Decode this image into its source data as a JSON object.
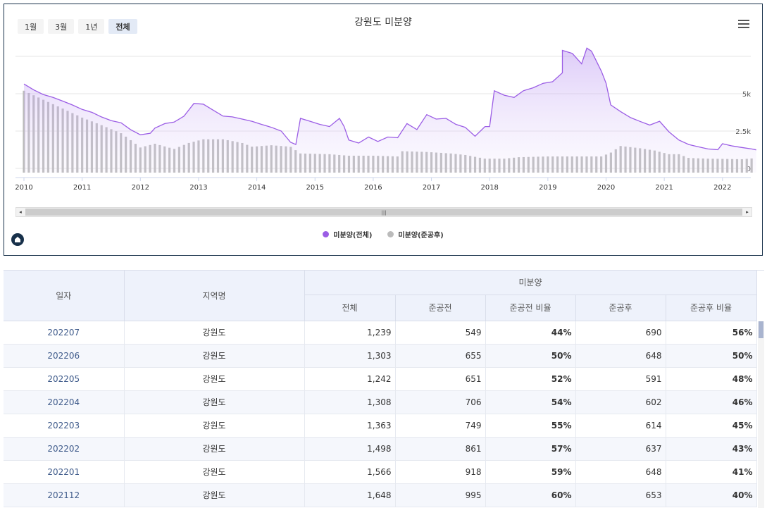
{
  "range_buttons": [
    {
      "label": "1월"
    },
    {
      "label": "3월"
    },
    {
      "label": "1년"
    },
    {
      "label": "전체",
      "active": true
    }
  ],
  "chart_data": {
    "type": "area+bar",
    "title": "강원도 미분양",
    "x_ticks": [
      "2010",
      "2011",
      "2012",
      "2013",
      "2014",
      "2015",
      "2016",
      "2017",
      "2018",
      "2019",
      "2020",
      "2021",
      "2022"
    ],
    "y_ticks": [
      "0",
      "2.5k",
      "5k"
    ],
    "ylim": [
      0,
      7500
    ],
    "grid": true,
    "legend_position": "bottom",
    "series": [
      {
        "name": "미분양(전체)",
        "type": "area",
        "color": "#9b5de5",
        "points": [
          [
            2010.0,
            5650
          ],
          [
            2010.17,
            5250
          ],
          [
            2010.33,
            4950
          ],
          [
            2010.5,
            4750
          ],
          [
            2010.67,
            4500
          ],
          [
            2010.83,
            4250
          ],
          [
            2011.0,
            3950
          ],
          [
            2011.17,
            3750
          ],
          [
            2011.33,
            3450
          ],
          [
            2011.5,
            3200
          ],
          [
            2011.67,
            3050
          ],
          [
            2011.83,
            2600
          ],
          [
            2012.0,
            2250
          ],
          [
            2012.17,
            2350
          ],
          [
            2012.25,
            2700
          ],
          [
            2012.42,
            3000
          ],
          [
            2012.58,
            3100
          ],
          [
            2012.75,
            3500
          ],
          [
            2012.92,
            4350
          ],
          [
            2013.08,
            4300
          ],
          [
            2013.25,
            3900
          ],
          [
            2013.42,
            3500
          ],
          [
            2013.58,
            3450
          ],
          [
            2013.75,
            3300
          ],
          [
            2013.92,
            3150
          ],
          [
            2014.08,
            2950
          ],
          [
            2014.25,
            2750
          ],
          [
            2014.42,
            2500
          ],
          [
            2014.58,
            1750
          ],
          [
            2014.67,
            1600
          ],
          [
            2014.75,
            3350
          ],
          [
            2014.92,
            3150
          ],
          [
            2015.08,
            2950
          ],
          [
            2015.25,
            2800
          ],
          [
            2015.42,
            3350
          ],
          [
            2015.5,
            2800
          ],
          [
            2015.58,
            1900
          ],
          [
            2015.75,
            1700
          ],
          [
            2015.92,
            2100
          ],
          [
            2016.08,
            1800
          ],
          [
            2016.25,
            2100
          ],
          [
            2016.42,
            2050
          ],
          [
            2016.58,
            3000
          ],
          [
            2016.75,
            2600
          ],
          [
            2016.92,
            3600
          ],
          [
            2017.08,
            3300
          ],
          [
            2017.25,
            3350
          ],
          [
            2017.42,
            2950
          ],
          [
            2017.58,
            2750
          ],
          [
            2017.75,
            2150
          ],
          [
            2017.92,
            2800
          ],
          [
            2018.0,
            2800
          ],
          [
            2018.08,
            5200
          ],
          [
            2018.25,
            4900
          ],
          [
            2018.42,
            4750
          ],
          [
            2018.58,
            5200
          ],
          [
            2018.75,
            5400
          ],
          [
            2018.92,
            5700
          ],
          [
            2019.08,
            5800
          ],
          [
            2019.25,
            6400
          ],
          [
            2019.25,
            7900
          ],
          [
            2019.42,
            7700
          ],
          [
            2019.58,
            7000
          ],
          [
            2019.67,
            8050
          ],
          [
            2019.75,
            7850
          ],
          [
            2019.92,
            6500
          ],
          [
            2020.0,
            5700
          ],
          [
            2020.08,
            4250
          ],
          [
            2020.25,
            3800
          ],
          [
            2020.42,
            3400
          ],
          [
            2020.58,
            3150
          ],
          [
            2020.75,
            2900
          ],
          [
            2020.92,
            3150
          ],
          [
            2021.08,
            2450
          ],
          [
            2021.25,
            1900
          ],
          [
            2021.42,
            1600
          ],
          [
            2021.58,
            1450
          ],
          [
            2021.75,
            1300
          ],
          [
            2021.92,
            1250
          ],
          [
            2022.0,
            1650
          ],
          [
            2022.17,
            1500
          ],
          [
            2022.33,
            1400
          ],
          [
            2022.5,
            1303
          ],
          [
            2022.58,
            1239
          ]
        ]
      },
      {
        "name": "미분양(준공후)",
        "type": "bar",
        "color": "#bbbbbb",
        "points": [
          [
            2010.0,
            5200
          ],
          [
            2010.33,
            4600
          ],
          [
            2010.67,
            4000
          ],
          [
            2011.0,
            3400
          ],
          [
            2011.33,
            2900
          ],
          [
            2011.67,
            2350
          ],
          [
            2011.83,
            1900
          ],
          [
            2012.0,
            1400
          ],
          [
            2012.25,
            1650
          ],
          [
            2012.58,
            1300
          ],
          [
            2012.83,
            1700
          ],
          [
            2013.08,
            1950
          ],
          [
            2013.42,
            1950
          ],
          [
            2013.75,
            1700
          ],
          [
            2013.92,
            1450
          ],
          [
            2014.25,
            1550
          ],
          [
            2014.58,
            1450
          ],
          [
            2014.75,
            1000
          ],
          [
            2015.25,
            950
          ],
          [
            2015.58,
            850
          ],
          [
            2016.0,
            850
          ],
          [
            2016.42,
            800
          ],
          [
            2016.5,
            1150
          ],
          [
            2016.92,
            1100
          ],
          [
            2017.33,
            1000
          ],
          [
            2017.58,
            900
          ],
          [
            2017.92,
            650
          ],
          [
            2018.25,
            650
          ],
          [
            2018.5,
            750
          ],
          [
            2019.0,
            800
          ],
          [
            2019.5,
            800
          ],
          [
            2019.92,
            800
          ],
          [
            2020.08,
            1050
          ],
          [
            2020.25,
            1500
          ],
          [
            2020.58,
            1350
          ],
          [
            2020.83,
            1200
          ],
          [
            2021.08,
            950
          ],
          [
            2021.25,
            950
          ],
          [
            2021.42,
            700
          ],
          [
            2021.75,
            650
          ],
          [
            2022.0,
            637
          ],
          [
            2022.33,
            614
          ],
          [
            2022.58,
            690
          ]
        ]
      }
    ]
  },
  "table": {
    "header_group": "미분양",
    "columns": {
      "date": "일자",
      "region": "지역명",
      "total": "전체",
      "pre": "준공전",
      "pre_ratio": "준공전 비율",
      "post": "준공후",
      "post_ratio": "준공후 비율"
    },
    "rows": [
      {
        "date": "202207",
        "region": "강원도",
        "total": "1,239",
        "pre": "549",
        "pre_ratio": "44%",
        "post": "690",
        "post_ratio": "56%"
      },
      {
        "date": "202206",
        "region": "강원도",
        "total": "1,303",
        "pre": "655",
        "pre_ratio": "50%",
        "post": "648",
        "post_ratio": "50%"
      },
      {
        "date": "202205",
        "region": "강원도",
        "total": "1,242",
        "pre": "651",
        "pre_ratio": "52%",
        "post": "591",
        "post_ratio": "48%"
      },
      {
        "date": "202204",
        "region": "강원도",
        "total": "1,308",
        "pre": "706",
        "pre_ratio": "54%",
        "post": "602",
        "post_ratio": "46%"
      },
      {
        "date": "202203",
        "region": "강원도",
        "total": "1,363",
        "pre": "749",
        "pre_ratio": "55%",
        "post": "614",
        "post_ratio": "45%"
      },
      {
        "date": "202202",
        "region": "강원도",
        "total": "1,498",
        "pre": "861",
        "pre_ratio": "57%",
        "post": "637",
        "post_ratio": "43%"
      },
      {
        "date": "202201",
        "region": "강원도",
        "total": "1,566",
        "pre": "918",
        "pre_ratio": "59%",
        "post": "648",
        "post_ratio": "41%"
      },
      {
        "date": "202112",
        "region": "강원도",
        "total": "1,648",
        "pre": "995",
        "pre_ratio": "60%",
        "post": "653",
        "post_ratio": "40%"
      }
    ]
  },
  "icons": [
    "menu-icon",
    "scroll-left-icon",
    "scroll-right-icon",
    "scroll-grip-icon",
    "logo-icon"
  ]
}
